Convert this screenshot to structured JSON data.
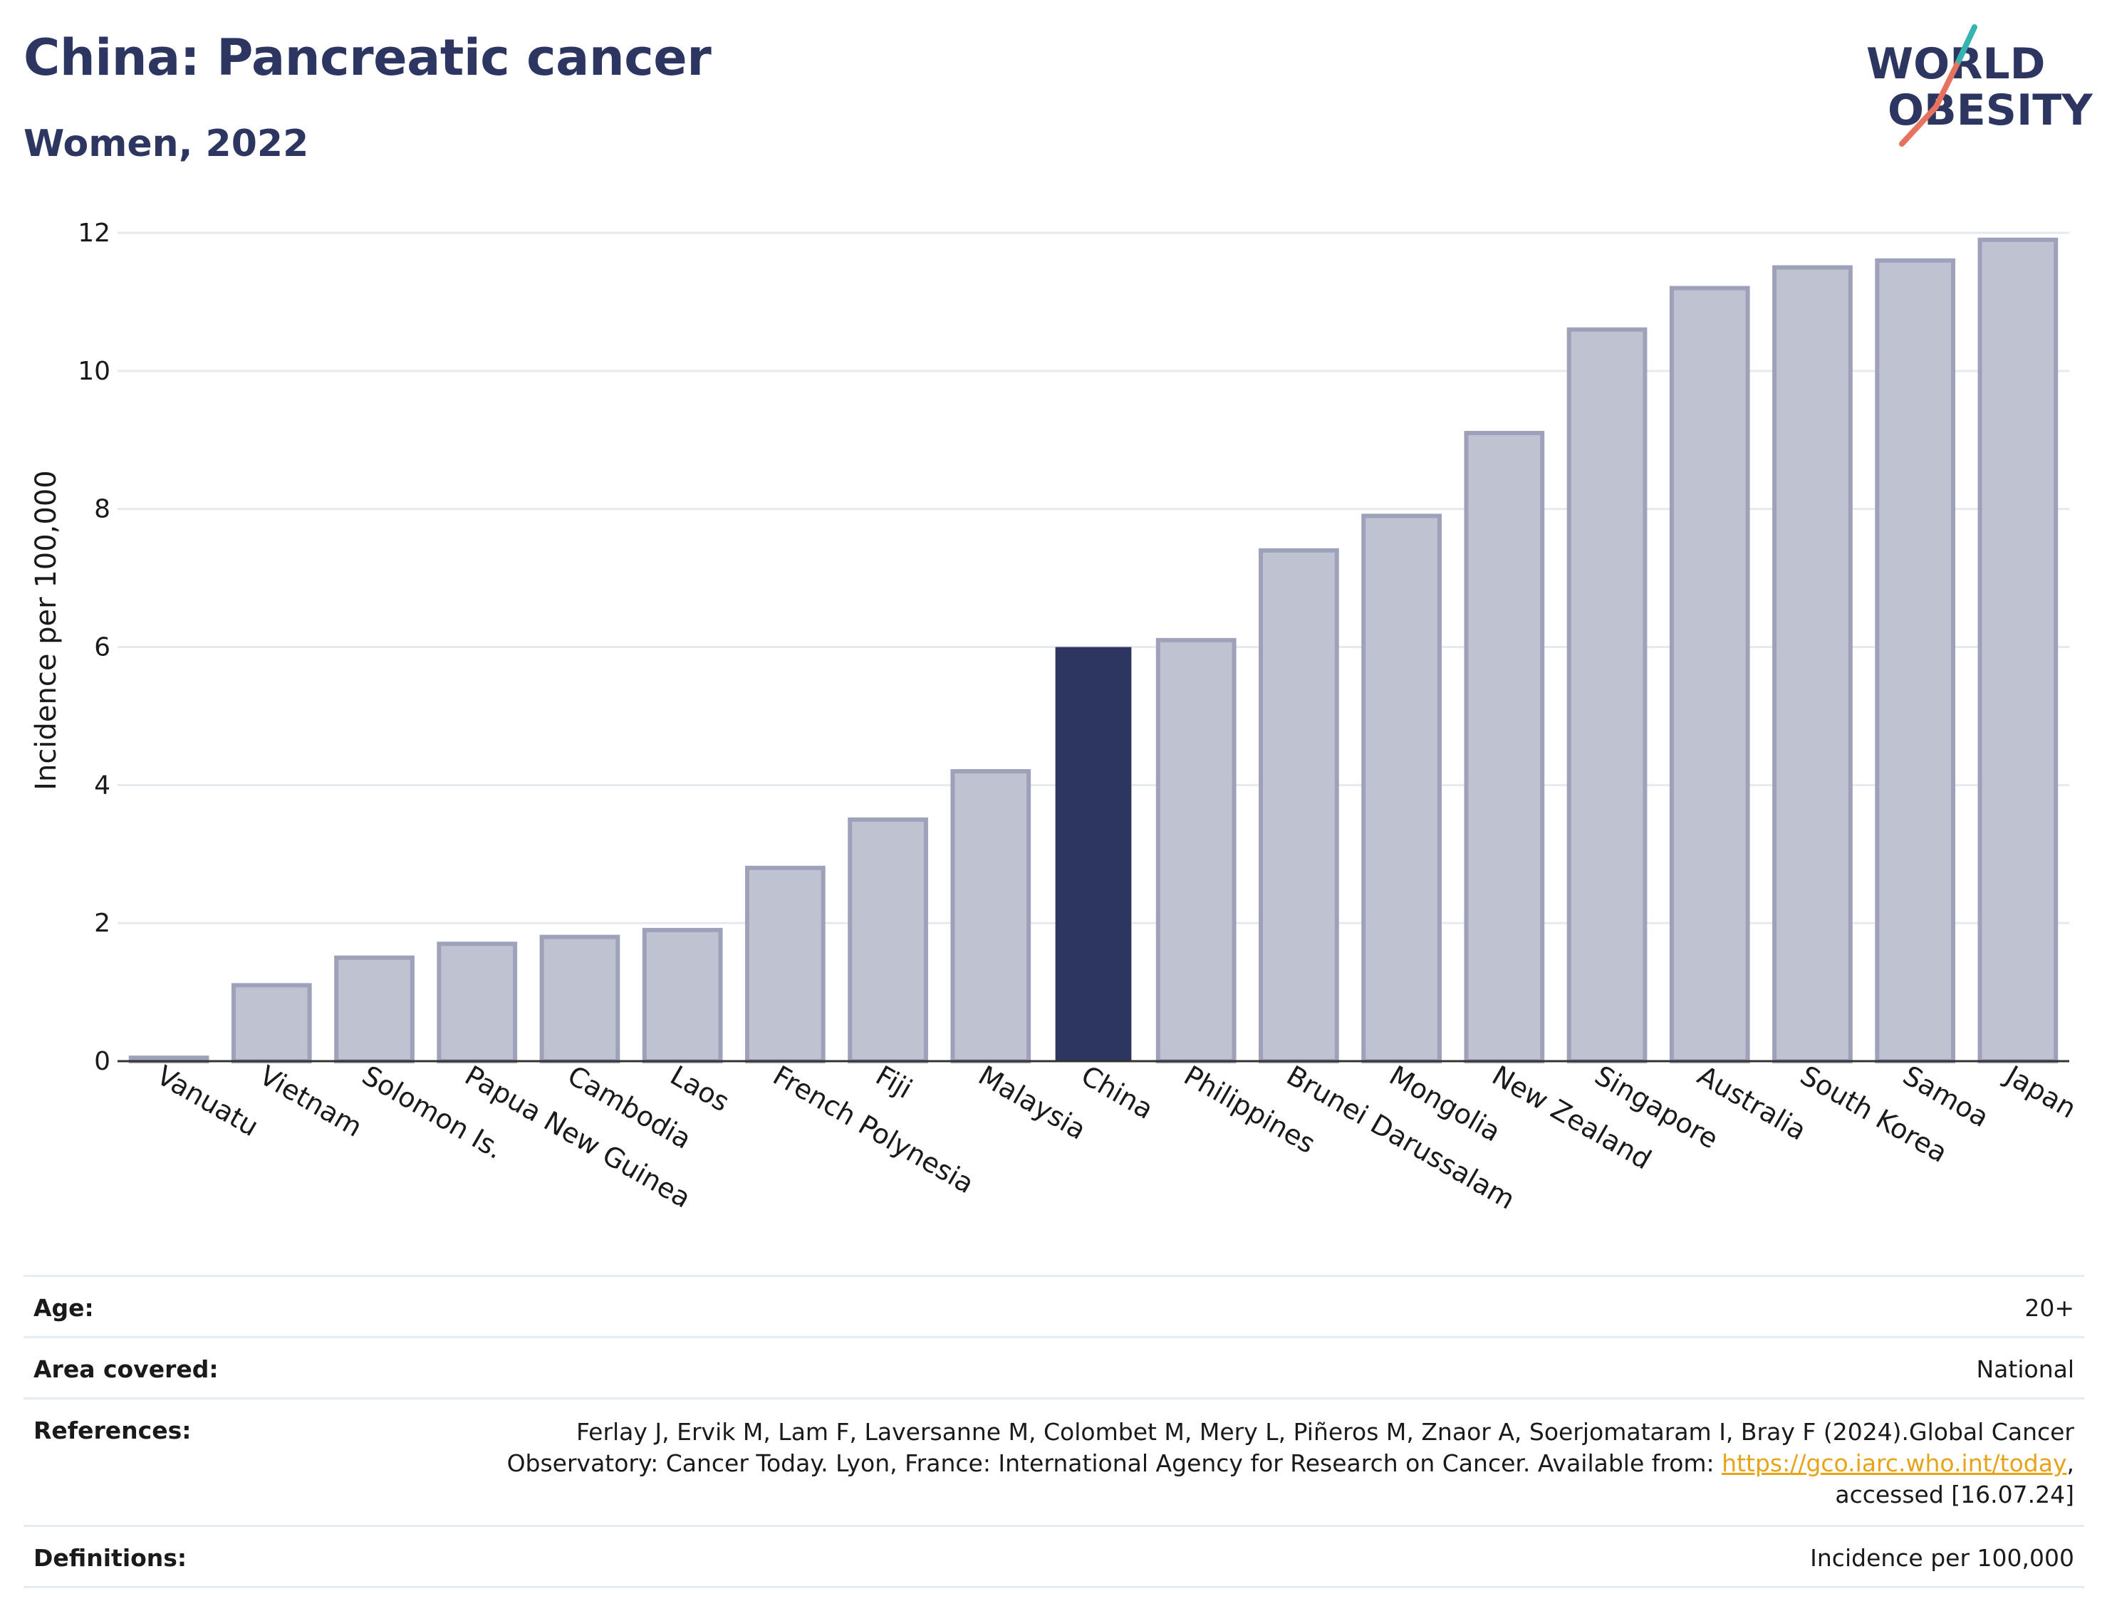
{
  "title": "China: Pancreatic cancer",
  "subtitle": "Women, 2022",
  "logo": {
    "line1": "WORLD",
    "line2": "OBESITY",
    "accent_teal": "#36b5b0",
    "accent_coral": "#e5735f"
  },
  "colors": {
    "highlight": "#2d3561",
    "bar_fill": "#bfc2d0",
    "bar_stroke": "#9da1ba",
    "grid": "#e6eaf0",
    "axis": "#333333"
  },
  "chart_data": {
    "type": "bar",
    "ylabel": "Incidence per 100,000",
    "ylim": [
      0,
      12
    ],
    "yticks": [
      0,
      2,
      4,
      6,
      8,
      10,
      12
    ],
    "grid": true,
    "highlight": "China",
    "categories": [
      "Vanuatu",
      "Vietnam",
      "Solomon Is.",
      "Papua New Guinea",
      "Cambodia",
      "Laos",
      "French Polynesia",
      "Fiji",
      "Malaysia",
      "China",
      "Philippines",
      "Brunei Darussalam",
      "Mongolia",
      "New Zealand",
      "Singapore",
      "Australia",
      "South Korea",
      "Samoa",
      "Japan"
    ],
    "values": [
      0.05,
      1.1,
      1.5,
      1.7,
      1.8,
      1.9,
      2.8,
      3.5,
      4.2,
      6.0,
      6.1,
      7.4,
      7.9,
      9.1,
      10.6,
      11.2,
      11.5,
      11.6,
      11.9
    ]
  },
  "info": {
    "age_label": "Age:",
    "age_value": "20+",
    "area_label": "Area covered:",
    "area_value": "National",
    "references_label": "References:",
    "references_text_1": "Ferlay J, Ervik M, Lam F, Laversanne M, Colombet M, Mery L, Piñeros M, Znaor A, Soerjomataram I, Bray F (2024).Global Cancer Observatory: Cancer Today. Lyon, France: International Agency for Research on Cancer. Available from: ",
    "references_link": "https://gco.iarc.who.int/today",
    "references_text_2": ", accessed [16.07.24]",
    "definitions_label": "Definitions:",
    "definitions_value": "Incidence per 100,000"
  }
}
